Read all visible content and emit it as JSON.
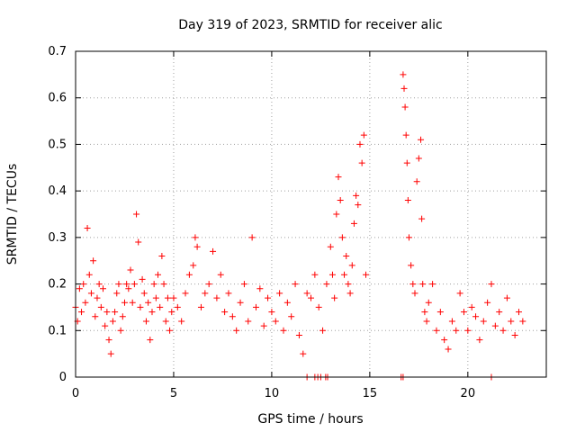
{
  "chart_data": {
    "type": "scatter",
    "title": "Day 319 of 2023, SRMTID for receiver alic",
    "xlabel": "GPS time / hours",
    "ylabel": "SRMTID / TECUs",
    "xlim": [
      0,
      24
    ],
    "ylim": [
      0,
      0.7
    ],
    "x_ticks": [
      0,
      5,
      10,
      15,
      20
    ],
    "x_tick_labels": [
      "0",
      "5",
      "10",
      "15",
      "20"
    ],
    "y_ticks": [
      0,
      0.1,
      0.2,
      0.3,
      0.4,
      0.5,
      0.6,
      0.7
    ],
    "y_tick_labels": [
      "0",
      "0.1",
      "0.2",
      "0.3",
      "0.4",
      "0.5",
      "0.6",
      "0.7"
    ],
    "grid": true,
    "marker": "plus",
    "color": "#ff0000",
    "series": [
      {
        "name": "SRMTID",
        "points": [
          [
            0.0,
            0.15
          ],
          [
            0.1,
            0.12
          ],
          [
            0.2,
            0.19
          ],
          [
            0.3,
            0.14
          ],
          [
            0.4,
            0.2
          ],
          [
            0.5,
            0.16
          ],
          [
            0.6,
            0.32
          ],
          [
            0.7,
            0.22
          ],
          [
            0.8,
            0.18
          ],
          [
            0.9,
            0.25
          ],
          [
            1.0,
            0.13
          ],
          [
            1.1,
            0.17
          ],
          [
            1.2,
            0.2
          ],
          [
            1.3,
            0.15
          ],
          [
            1.4,
            0.19
          ],
          [
            1.5,
            0.11
          ],
          [
            1.6,
            0.14
          ],
          [
            1.7,
            0.08
          ],
          [
            1.8,
            0.05
          ],
          [
            1.9,
            0.12
          ],
          [
            2.0,
            0.14
          ],
          [
            2.1,
            0.18
          ],
          [
            2.2,
            0.2
          ],
          [
            2.3,
            0.1
          ],
          [
            2.4,
            0.13
          ],
          [
            2.5,
            0.16
          ],
          [
            2.6,
            0.2
          ],
          [
            2.7,
            0.19
          ],
          [
            2.8,
            0.23
          ],
          [
            2.9,
            0.16
          ],
          [
            3.0,
            0.2
          ],
          [
            3.1,
            0.35
          ],
          [
            3.2,
            0.29
          ],
          [
            3.3,
            0.15
          ],
          [
            3.4,
            0.21
          ],
          [
            3.5,
            0.18
          ],
          [
            3.6,
            0.12
          ],
          [
            3.7,
            0.16
          ],
          [
            3.8,
            0.08
          ],
          [
            3.9,
            0.14
          ],
          [
            4.0,
            0.2
          ],
          [
            4.1,
            0.17
          ],
          [
            4.2,
            0.22
          ],
          [
            4.3,
            0.15
          ],
          [
            4.4,
            0.26
          ],
          [
            4.5,
            0.2
          ],
          [
            4.6,
            0.12
          ],
          [
            4.7,
            0.17
          ],
          [
            4.8,
            0.1
          ],
          [
            4.9,
            0.14
          ],
          [
            5.0,
            0.17
          ],
          [
            5.2,
            0.15
          ],
          [
            5.4,
            0.12
          ],
          [
            5.6,
            0.18
          ],
          [
            5.8,
            0.22
          ],
          [
            6.0,
            0.24
          ],
          [
            6.1,
            0.3
          ],
          [
            6.2,
            0.28
          ],
          [
            6.4,
            0.15
          ],
          [
            6.6,
            0.18
          ],
          [
            6.8,
            0.2
          ],
          [
            7.0,
            0.27
          ],
          [
            7.2,
            0.17
          ],
          [
            7.4,
            0.22
          ],
          [
            7.6,
            0.14
          ],
          [
            7.8,
            0.18
          ],
          [
            8.0,
            0.13
          ],
          [
            8.2,
            0.1
          ],
          [
            8.4,
            0.16
          ],
          [
            8.6,
            0.2
          ],
          [
            8.8,
            0.12
          ],
          [
            9.0,
            0.3
          ],
          [
            9.2,
            0.15
          ],
          [
            9.4,
            0.19
          ],
          [
            9.6,
            0.11
          ],
          [
            9.8,
            0.17
          ],
          [
            10.0,
            0.14
          ],
          [
            10.2,
            0.12
          ],
          [
            10.4,
            0.18
          ],
          [
            10.6,
            0.1
          ],
          [
            10.8,
            0.16
          ],
          [
            11.0,
            0.13
          ],
          [
            11.2,
            0.2
          ],
          [
            11.4,
            0.09
          ],
          [
            11.6,
            0.05
          ],
          [
            11.8,
            0.18
          ],
          [
            12.0,
            0.17
          ],
          [
            12.2,
            0.22
          ],
          [
            12.4,
            0.15
          ],
          [
            12.6,
            0.1
          ],
          [
            12.8,
            0.2
          ],
          [
            13.0,
            0.28
          ],
          [
            13.1,
            0.22
          ],
          [
            13.2,
            0.17
          ],
          [
            13.3,
            0.35
          ],
          [
            13.4,
            0.43
          ],
          [
            13.5,
            0.38
          ],
          [
            13.6,
            0.3
          ],
          [
            13.7,
            0.22
          ],
          [
            13.8,
            0.26
          ],
          [
            13.9,
            0.2
          ],
          [
            14.0,
            0.18
          ],
          [
            14.1,
            0.24
          ],
          [
            14.2,
            0.33
          ],
          [
            14.3,
            0.39
          ],
          [
            14.4,
            0.37
          ],
          [
            14.5,
            0.5
          ],
          [
            14.6,
            0.46
          ],
          [
            14.7,
            0.52
          ],
          [
            14.8,
            0.22
          ],
          [
            16.7,
            0.65
          ],
          [
            16.75,
            0.62
          ],
          [
            16.8,
            0.58
          ],
          [
            16.85,
            0.52
          ],
          [
            16.9,
            0.46
          ],
          [
            16.95,
            0.38
          ],
          [
            17.0,
            0.3
          ],
          [
            17.1,
            0.24
          ],
          [
            17.2,
            0.2
          ],
          [
            17.3,
            0.18
          ],
          [
            17.4,
            0.42
          ],
          [
            17.5,
            0.47
          ],
          [
            17.6,
            0.51
          ],
          [
            17.65,
            0.34
          ],
          [
            17.7,
            0.2
          ],
          [
            17.8,
            0.14
          ],
          [
            17.9,
            0.12
          ],
          [
            18.0,
            0.16
          ],
          [
            18.2,
            0.2
          ],
          [
            18.4,
            0.1
          ],
          [
            18.6,
            0.14
          ],
          [
            18.8,
            0.08
          ],
          [
            19.0,
            0.06
          ],
          [
            19.2,
            0.12
          ],
          [
            19.4,
            0.1
          ],
          [
            19.6,
            0.18
          ],
          [
            19.8,
            0.14
          ],
          [
            20.0,
            0.1
          ],
          [
            20.2,
            0.15
          ],
          [
            20.4,
            0.13
          ],
          [
            20.6,
            0.08
          ],
          [
            20.8,
            0.12
          ],
          [
            21.0,
            0.16
          ],
          [
            21.2,
            0.2
          ],
          [
            21.4,
            0.11
          ],
          [
            21.6,
            0.14
          ],
          [
            21.8,
            0.1
          ],
          [
            22.0,
            0.17
          ],
          [
            22.2,
            0.12
          ],
          [
            22.4,
            0.09
          ],
          [
            22.6,
            0.14
          ],
          [
            22.8,
            0.12
          ],
          [
            11.8,
            0.0
          ],
          [
            12.2,
            0.0
          ],
          [
            12.35,
            0.0
          ],
          [
            12.5,
            0.0
          ],
          [
            12.75,
            0.0
          ],
          [
            12.85,
            0.0
          ],
          [
            16.6,
            0.0
          ],
          [
            16.7,
            0.0
          ],
          [
            21.2,
            0.0
          ]
        ]
      }
    ]
  }
}
